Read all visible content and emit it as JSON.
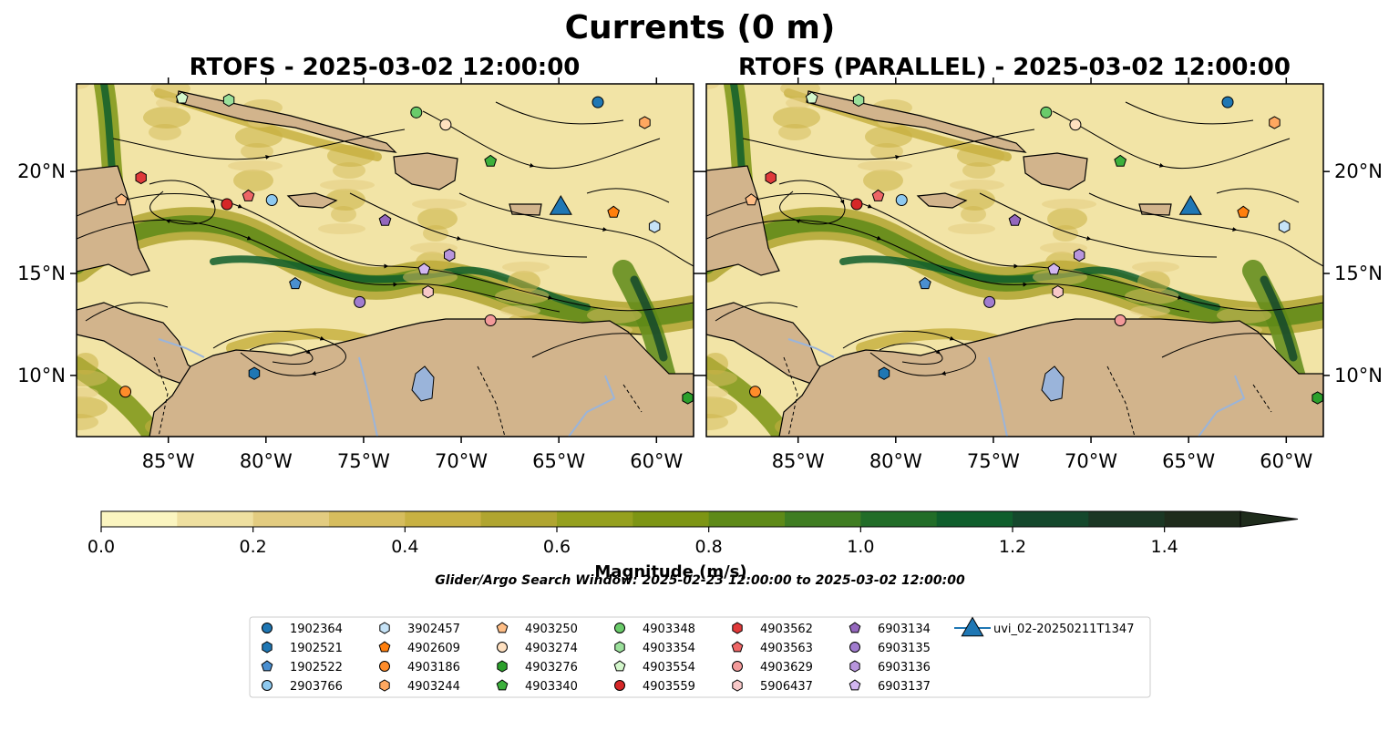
{
  "figure": {
    "title": "Currents (0 m)",
    "search_window": "Glider/Argo Search Window: 2025-02-23 12:00:00 to 2025-03-02 12:00:00"
  },
  "panels": [
    {
      "title": "RTOFS - 2025-03-02 12:00:00"
    },
    {
      "title": "RTOFS (PARALLEL) - 2025-03-02 12:00:00"
    }
  ],
  "axes": {
    "lon_ticks": [
      "85°W",
      "80°W",
      "75°W",
      "70°W",
      "65°W",
      "60°W"
    ],
    "lon_values": [
      -85,
      -80,
      -75,
      -70,
      -65,
      -60
    ],
    "lat_ticks": [
      "10°N",
      "15°N",
      "20°N"
    ],
    "lat_values": [
      10,
      15,
      20
    ],
    "lon_range": [
      -89.7,
      -58.1
    ],
    "lat_range": [
      7.0,
      24.3
    ]
  },
  "colorbar": {
    "label": "Magnitude (m/s)",
    "ticks": [
      "0.0",
      "0.2",
      "0.4",
      "0.6",
      "0.8",
      "1.0",
      "1.2",
      "1.4"
    ],
    "tick_values": [
      0.0,
      0.2,
      0.4,
      0.6,
      0.8,
      1.0,
      1.2,
      1.4
    ],
    "range": [
      0.0,
      1.5
    ],
    "extend": "max",
    "colors": [
      "#fbf5c0",
      "#efe0a0",
      "#e3cc80",
      "#d6bd5e",
      "#c8b142",
      "#b0a530",
      "#95a01e",
      "#7d9514",
      "#5e8a18",
      "#3f7d22",
      "#226d28",
      "#0f5e2c",
      "#14482c",
      "#1b3724",
      "#1f2c1c"
    ]
  },
  "colors": {
    "land": "#d2b48c",
    "lake": "#9ab4da",
    "ocean_base": "#f2e4a6"
  },
  "legend": [
    {
      "id": "1902364",
      "marker": "circle",
      "color": "#1f77b4"
    },
    {
      "id": "1902521",
      "marker": "hexagon",
      "color": "#1f77b4"
    },
    {
      "id": "1902522",
      "marker": "pentagon",
      "color": "#4a8fd0"
    },
    {
      "id": "2903766",
      "marker": "circle",
      "color": "#8ec9ef"
    },
    {
      "id": "3902457",
      "marker": "hexagon",
      "color": "#c6e3f7"
    },
    {
      "id": "4902609",
      "marker": "pentagon",
      "color": "#ff7f0e"
    },
    {
      "id": "4903186",
      "marker": "circle",
      "color": "#ff8c2a"
    },
    {
      "id": "4903244",
      "marker": "hexagon",
      "color": "#ffa860"
    },
    {
      "id": "4903250",
      "marker": "pentagon",
      "color": "#ffbe86"
    },
    {
      "id": "4903274",
      "marker": "circle",
      "color": "#ffe0c0"
    },
    {
      "id": "4903276",
      "marker": "hexagon",
      "color": "#2ca02c"
    },
    {
      "id": "4903340",
      "marker": "pentagon",
      "color": "#3cb03c"
    },
    {
      "id": "4903348",
      "marker": "circle",
      "color": "#6acb6a"
    },
    {
      "id": "4903354",
      "marker": "hexagon",
      "color": "#9be09b"
    },
    {
      "id": "4903554",
      "marker": "pentagon",
      "color": "#d4f7cc"
    },
    {
      "id": "4903559",
      "marker": "circle",
      "color": "#d62728"
    },
    {
      "id": "4903562",
      "marker": "hexagon",
      "color": "#e0393a"
    },
    {
      "id": "4903563",
      "marker": "pentagon",
      "color": "#ee6666"
    },
    {
      "id": "4903629",
      "marker": "circle",
      "color": "#f39a9a"
    },
    {
      "id": "5906437",
      "marker": "hexagon",
      "color": "#f8c8c8"
    },
    {
      "id": "6903134",
      "marker": "pentagon",
      "color": "#9467bd"
    },
    {
      "id": "6903135",
      "marker": "circle",
      "color": "#a17ccf"
    },
    {
      "id": "6903136",
      "marker": "hexagon",
      "color": "#b895dd"
    },
    {
      "id": "6903137",
      "marker": "pentagon",
      "color": "#d2b6f0"
    },
    {
      "id": "uvi_02-20250211T1347",
      "marker": "triangle",
      "color": "#1f77b4"
    }
  ],
  "platforms": [
    {
      "id": "1902364",
      "lon": -63.0,
      "lat": 23.4
    },
    {
      "id": "2903766",
      "lon": -79.7,
      "lat": 18.6
    },
    {
      "id": "4903559",
      "lon": -82.0,
      "lat": 18.4
    },
    {
      "id": "4903563",
      "lon": -80.9,
      "lat": 18.8
    },
    {
      "id": "4903250",
      "lon": -87.4,
      "lat": 18.6
    },
    {
      "id": "4903562",
      "lon": -86.4,
      "lat": 19.7
    },
    {
      "id": "4903554",
      "lon": -84.3,
      "lat": 23.6
    },
    {
      "id": "4903354",
      "lon": -81.9,
      "lat": 23.5
    },
    {
      "id": "4903348",
      "lon": -72.3,
      "lat": 22.9
    },
    {
      "id": "4903274",
      "lon": -70.8,
      "lat": 22.3
    },
    {
      "id": "4903244",
      "lon": -60.6,
      "lat": 22.4
    },
    {
      "id": "4903340",
      "lon": -68.5,
      "lat": 20.5
    },
    {
      "id": "4902609",
      "lon": -62.2,
      "lat": 18.0
    },
    {
      "id": "3902457",
      "lon": -60.1,
      "lat": 17.3
    },
    {
      "id": "6903134",
      "lon": -73.9,
      "lat": 17.6
    },
    {
      "id": "6903136",
      "lon": -70.6,
      "lat": 15.9
    },
    {
      "id": "6903137",
      "lon": -71.9,
      "lat": 15.2
    },
    {
      "id": "5906437",
      "lon": -71.7,
      "lat": 14.1
    },
    {
      "id": "1902522",
      "lon": -78.5,
      "lat": 14.5
    },
    {
      "id": "6903135",
      "lon": -75.2,
      "lat": 13.6
    },
    {
      "id": "4903629",
      "lon": -68.5,
      "lat": 12.7
    },
    {
      "id": "1902521",
      "lon": -80.6,
      "lat": 10.1
    },
    {
      "id": "4903186",
      "lon": -87.2,
      "lat": 9.2
    },
    {
      "id": "4903276",
      "lon": -58.4,
      "lat": 8.9
    },
    {
      "id": "uvi_02-20250211T1347",
      "lon": -64.9,
      "lat": 18.2
    }
  ]
}
